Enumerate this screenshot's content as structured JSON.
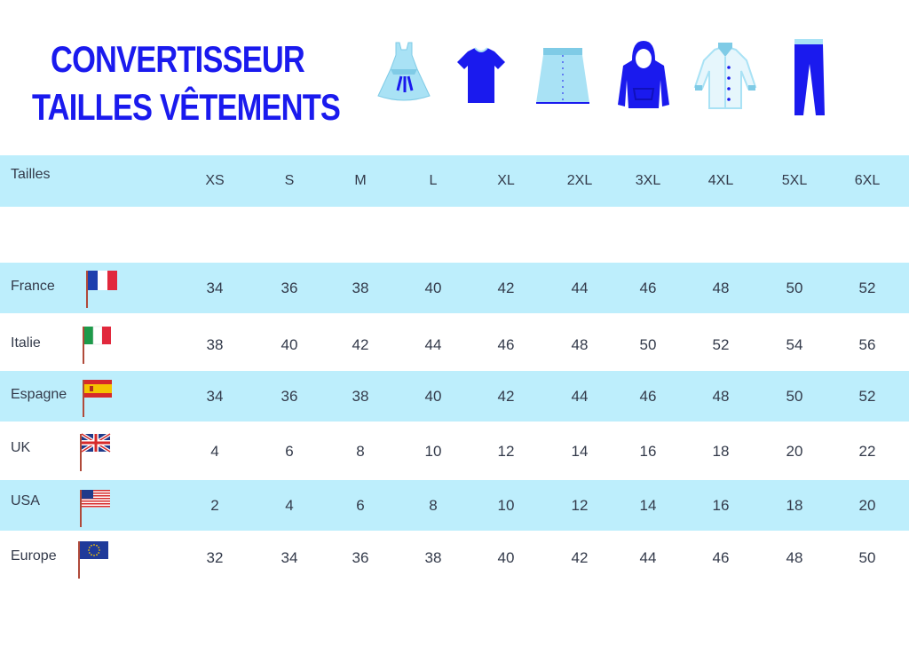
{
  "title": {
    "line1": "CONVERTISSEUR",
    "line2": "TAILLES VÊTEMENTS"
  },
  "icons": [
    "dress-icon",
    "tshirt-icon",
    "skirt-icon",
    "hoodie-icon",
    "coat-icon",
    "pants-icon"
  ],
  "colors": {
    "title": "#1a1aee",
    "band": "#bdeefc",
    "light_blue": "#a9e2f5",
    "dark_blue": "#1a1aee",
    "text": "#333a4a"
  },
  "table": {
    "header_label": "Tailles",
    "sizes": [
      "XS",
      "S",
      "M",
      "L",
      "XL",
      "2XL",
      "3XL",
      "4XL",
      "5XL",
      "6XL"
    ],
    "rows": [
      {
        "country": "France",
        "flag": "france-flag-icon",
        "values": [
          "34",
          "36",
          "38",
          "40",
          "42",
          "44",
          "46",
          "48",
          "50",
          "52"
        ]
      },
      {
        "country": "Italie",
        "flag": "italy-flag-icon",
        "values": [
          "38",
          "40",
          "42",
          "44",
          "46",
          "48",
          "50",
          "52",
          "54",
          "56"
        ]
      },
      {
        "country": "Espagne",
        "flag": "spain-flag-icon",
        "values": [
          "34",
          "36",
          "38",
          "40",
          "42",
          "44",
          "46",
          "48",
          "50",
          "52"
        ]
      },
      {
        "country": "UK",
        "flag": "uk-flag-icon",
        "values": [
          "4",
          "6",
          "8",
          "10",
          "12",
          "14",
          "16",
          "18",
          "20",
          "22"
        ]
      },
      {
        "country": "USA",
        "flag": "usa-flag-icon",
        "values": [
          "2",
          "4",
          "6",
          "8",
          "10",
          "12",
          "14",
          "16",
          "18",
          "20"
        ]
      },
      {
        "country": "Europe",
        "flag": "eu-flag-icon",
        "values": [
          "32",
          "34",
          "36",
          "38",
          "40",
          "42",
          "44",
          "46",
          "48",
          "50"
        ]
      }
    ]
  }
}
